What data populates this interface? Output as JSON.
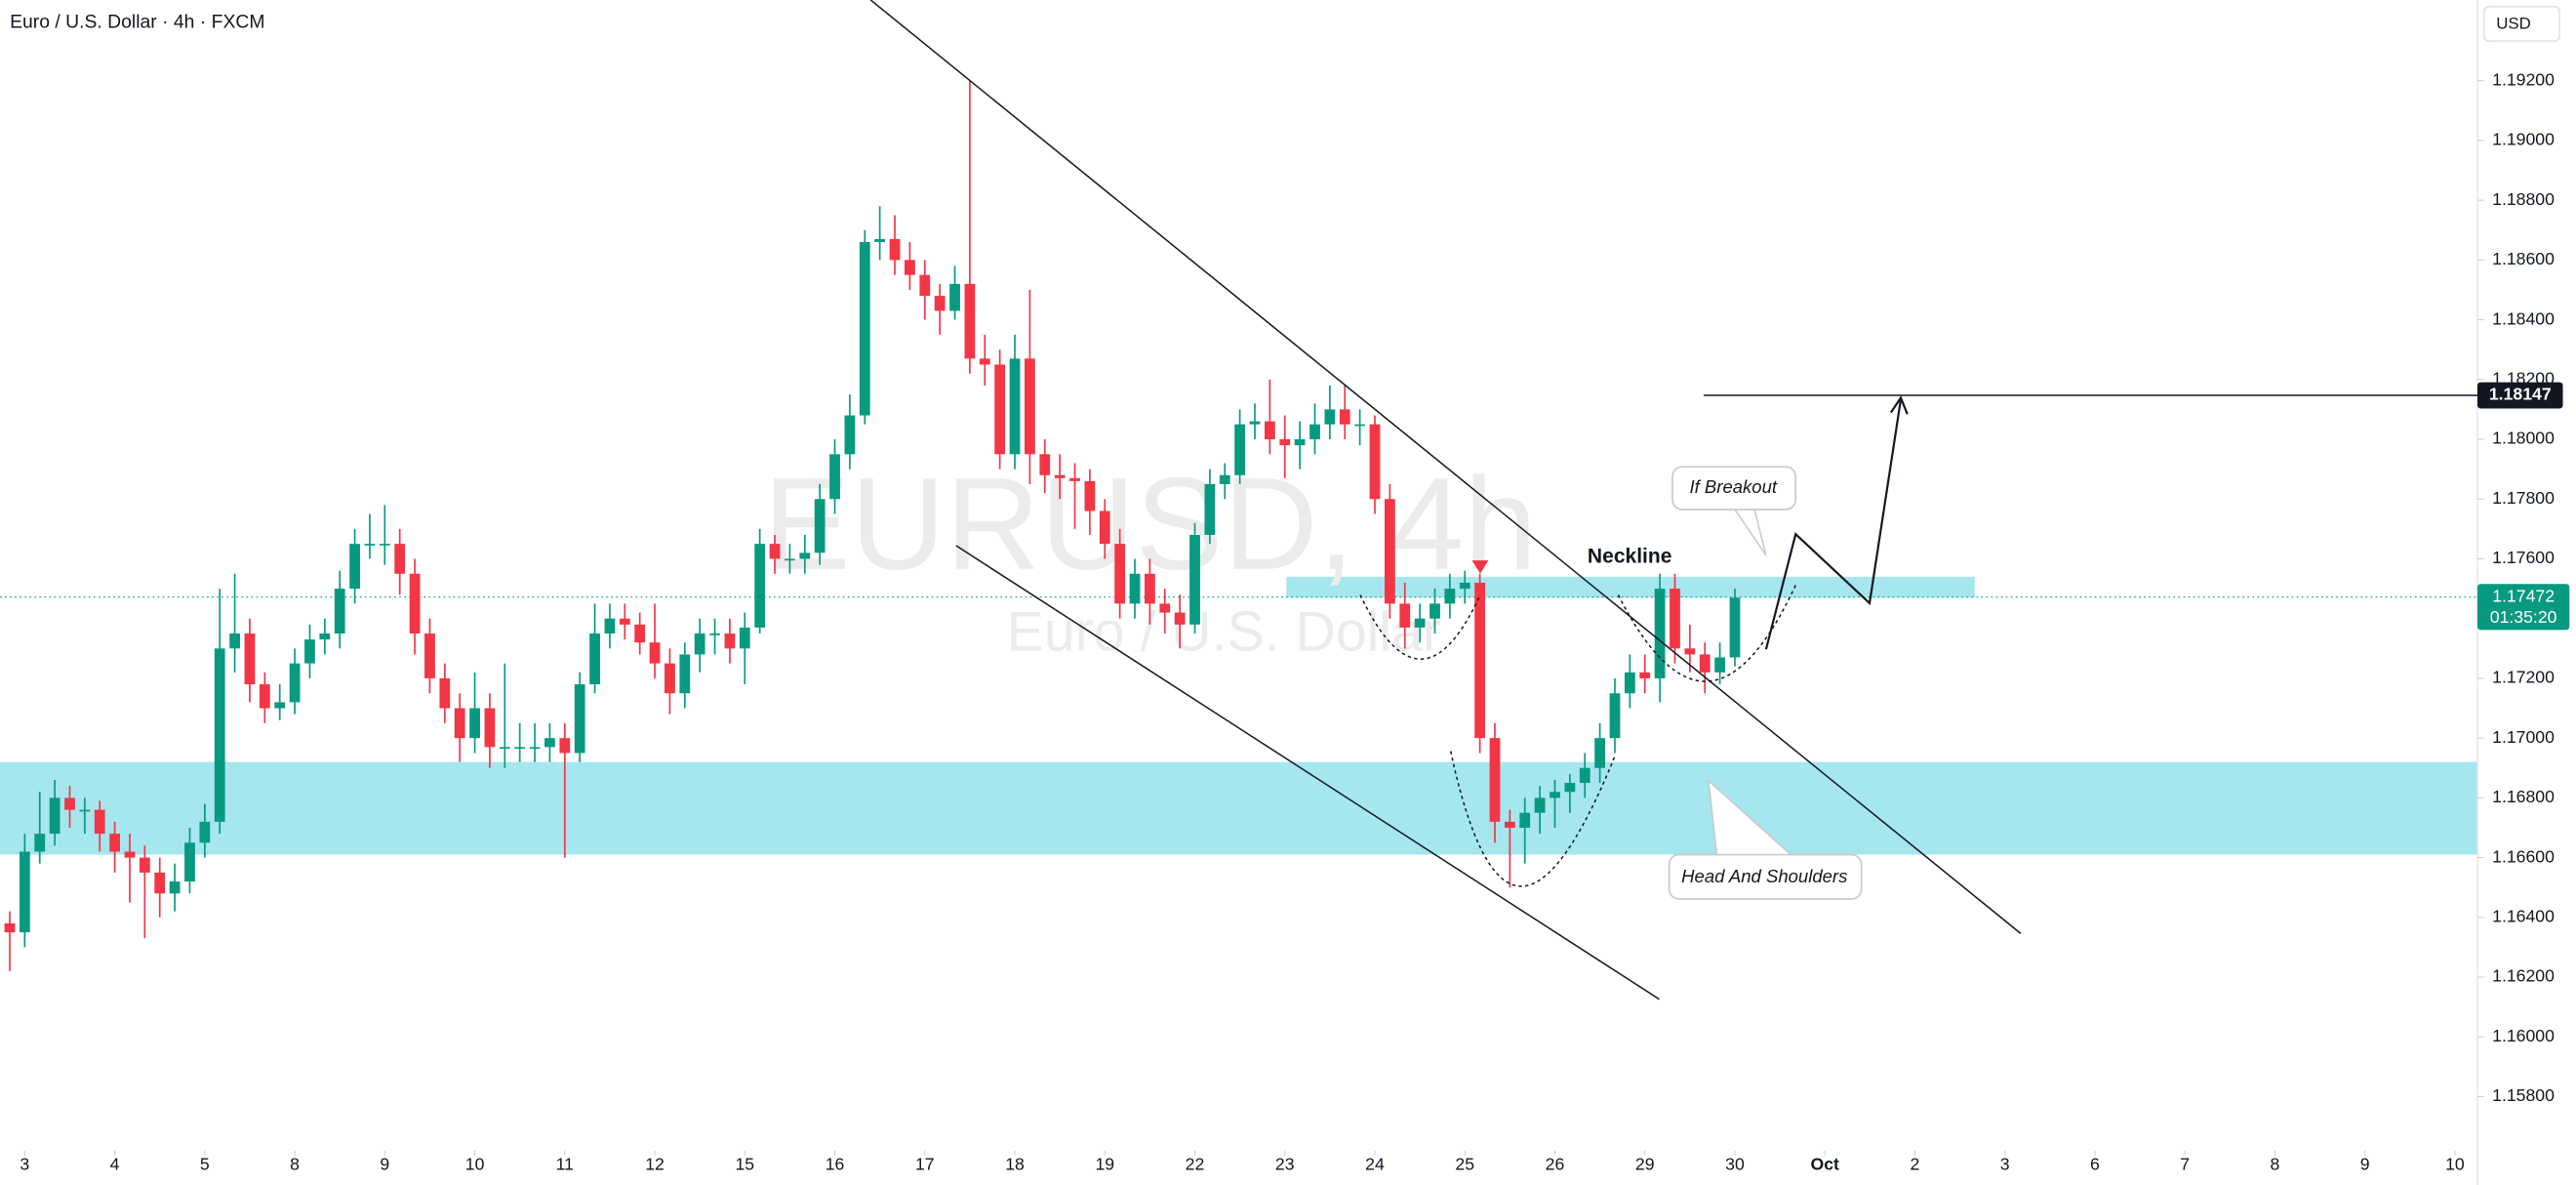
{
  "chart_data": {
    "type": "candlestick",
    "title": "Euro / U.S. Dollar · 4h · FXCM",
    "currency": "USD",
    "watermark": {
      "title": "EURUSD, 4h",
      "subtitle": "Euro / U.S. Dollar"
    },
    "up_color": "#089981",
    "down_color": "#f23645",
    "open": [
      1.1638,
      1.1635,
      1.1662,
      1.1668,
      1.168,
      1.1676,
      1.1676,
      1.1668,
      1.1662,
      1.166,
      1.1655,
      1.1648,
      1.1652,
      1.1665,
      1.1672,
      1.173,
      1.1735,
      1.1718,
      1.171,
      1.1712,
      1.1725,
      1.1733,
      1.1735,
      1.175,
      1.1765,
      1.1765,
      1.1765,
      1.1755,
      1.1735,
      1.172,
      1.171,
      1.17,
      1.171,
      1.1697,
      1.1697,
      1.1697,
      1.1697,
      1.17,
      1.1695,
      1.1718,
      1.1735,
      1.174,
      1.1738,
      1.1732,
      1.1725,
      1.1715,
      1.1728,
      1.1735,
      1.1735,
      1.173,
      1.1737,
      1.1765,
      1.176,
      1.176,
      1.1762,
      1.178,
      1.1795,
      1.1808,
      1.1866,
      1.1867,
      1.186,
      1.1855,
      1.1848,
      1.1843,
      1.1852,
      1.1827,
      1.1825,
      1.1795,
      1.1827,
      1.1795,
      1.1788,
      1.1787,
      1.1786,
      1.1776,
      1.1765,
      1.1745,
      1.1755,
      1.1745,
      1.1742,
      1.1738,
      1.1768,
      1.1785,
      1.1788,
      1.1805,
      1.1806,
      1.18,
      1.1798,
      1.18,
      1.1805,
      1.181,
      1.1805,
      1.1805,
      1.178,
      1.1745,
      1.1737,
      1.174,
      1.1745,
      1.175,
      1.1752,
      1.17,
      1.1672,
      1.167,
      1.1675,
      1.168,
      1.1682,
      1.1685,
      1.169,
      1.17,
      1.1715,
      1.1722,
      1.172,
      1.175,
      1.173,
      1.1728,
      1.1722,
      1.1727
    ],
    "high": [
      1.1642,
      1.1668,
      1.1682,
      1.1686,
      1.1684,
      1.168,
      1.1679,
      1.1672,
      1.1668,
      1.1664,
      1.166,
      1.1658,
      1.167,
      1.1678,
      1.175,
      1.1755,
      1.174,
      1.1722,
      1.1718,
      1.173,
      1.1738,
      1.174,
      1.1756,
      1.177,
      1.1775,
      1.1778,
      1.177,
      1.176,
      1.174,
      1.1725,
      1.1715,
      1.1722,
      1.1715,
      1.1725,
      1.1705,
      1.1705,
      1.1705,
      1.1705,
      1.1722,
      1.1745,
      1.1745,
      1.1745,
      1.1742,
      1.1745,
      1.173,
      1.1732,
      1.174,
      1.174,
      1.174,
      1.1742,
      1.177,
      1.1768,
      1.1765,
      1.1768,
      1.1785,
      1.18,
      1.1815,
      1.187,
      1.1878,
      1.1875,
      1.1866,
      1.186,
      1.1852,
      1.1858,
      1.192,
      1.1835,
      1.183,
      1.1835,
      1.185,
      1.18,
      1.1795,
      1.1792,
      1.179,
      1.178,
      1.177,
      1.176,
      1.176,
      1.175,
      1.1748,
      1.1772,
      1.179,
      1.1792,
      1.181,
      1.1812,
      1.182,
      1.1808,
      1.1806,
      1.1812,
      1.1818,
      1.1818,
      1.181,
      1.1808,
      1.1785,
      1.1752,
      1.1745,
      1.175,
      1.1755,
      1.1756,
      1.1755,
      1.1705,
      1.1676,
      1.168,
      1.1684,
      1.1686,
      1.1688,
      1.1695,
      1.1705,
      1.172,
      1.1728,
      1.1728,
      1.1755,
      1.1755,
      1.1738,
      1.1732,
      1.1732,
      1.175
    ],
    "low": [
      1.1622,
      1.163,
      1.1658,
      1.1664,
      1.167,
      1.1668,
      1.1662,
      1.1655,
      1.1645,
      1.1633,
      1.164,
      1.1642,
      1.1648,
      1.166,
      1.1668,
      1.1722,
      1.1712,
      1.1705,
      1.1706,
      1.1708,
      1.172,
      1.1728,
      1.173,
      1.1745,
      1.176,
      1.1758,
      1.1748,
      1.1728,
      1.1715,
      1.1705,
      1.1692,
      1.1695,
      1.169,
      1.169,
      1.1692,
      1.1692,
      1.1692,
      1.166,
      1.1692,
      1.1715,
      1.173,
      1.1733,
      1.1728,
      1.172,
      1.1708,
      1.171,
      1.1722,
      1.1728,
      1.1725,
      1.1718,
      1.1735,
      1.1755,
      1.1755,
      1.1755,
      1.1758,
      1.1775,
      1.179,
      1.1805,
      1.186,
      1.1855,
      1.185,
      1.184,
      1.1835,
      1.184,
      1.1822,
      1.1818,
      1.179,
      1.179,
      1.1785,
      1.1782,
      1.178,
      1.177,
      1.1768,
      1.176,
      1.174,
      1.174,
      1.1738,
      1.1735,
      1.173,
      1.1735,
      1.1765,
      1.178,
      1.1785,
      1.18,
      1.1795,
      1.1787,
      1.179,
      1.1795,
      1.18,
      1.18,
      1.1798,
      1.1775,
      1.174,
      1.173,
      1.1732,
      1.1735,
      1.174,
      1.1745,
      1.1695,
      1.1665,
      1.165,
      1.1658,
      1.1668,
      1.167,
      1.1675,
      1.168,
      1.1685,
      1.1695,
      1.171,
      1.1715,
      1.1712,
      1.1725,
      1.1722,
      1.1715,
      1.1718,
      1.1724
    ],
    "close": [
      1.1635,
      1.1662,
      1.1668,
      1.168,
      1.1676,
      1.1676,
      1.1668,
      1.1662,
      1.166,
      1.1655,
      1.1648,
      1.1652,
      1.1665,
      1.1672,
      1.173,
      1.1735,
      1.1718,
      1.171,
      1.1712,
      1.1725,
      1.1733,
      1.1735,
      1.175,
      1.1765,
      1.1765,
      1.1765,
      1.1755,
      1.1735,
      1.172,
      1.171,
      1.17,
      1.171,
      1.1697,
      1.1697,
      1.1697,
      1.1697,
      1.17,
      1.1695,
      1.1718,
      1.1735,
      1.174,
      1.1738,
      1.1732,
      1.1725,
      1.1715,
      1.1728,
      1.1735,
      1.1735,
      1.173,
      1.1737,
      1.1765,
      1.176,
      1.176,
      1.1762,
      1.178,
      1.1795,
      1.1808,
      1.1866,
      1.1867,
      1.186,
      1.1855,
      1.1848,
      1.1843,
      1.1852,
      1.1827,
      1.1825,
      1.1795,
      1.1827,
      1.1795,
      1.1788,
      1.1787,
      1.1786,
      1.1776,
      1.1765,
      1.1745,
      1.1755,
      1.1745,
      1.1742,
      1.1738,
      1.1768,
      1.1785,
      1.1788,
      1.1805,
      1.1806,
      1.18,
      1.1798,
      1.18,
      1.1805,
      1.181,
      1.1805,
      1.1805,
      1.178,
      1.1745,
      1.1737,
      1.174,
      1.1745,
      1.175,
      1.1752,
      1.17,
      1.1672,
      1.167,
      1.1675,
      1.168,
      1.1682,
      1.1685,
      1.169,
      1.17,
      1.1715,
      1.1722,
      1.172,
      1.175,
      1.173,
      1.1728,
      1.1722,
      1.1727,
      1.1747
    ],
    "xlim": [
      -0.65,
      164.5
    ],
    "xticks": [
      {
        "value": 1,
        "label": "3"
      },
      {
        "value": 7,
        "label": "4"
      },
      {
        "value": 13,
        "label": "5"
      },
      {
        "value": 19,
        "label": "8"
      },
      {
        "value": 25,
        "label": "9"
      },
      {
        "value": 31,
        "label": "10"
      },
      {
        "value": 37,
        "label": "11"
      },
      {
        "value": 43,
        "label": "12"
      },
      {
        "value": 49,
        "label": "15"
      },
      {
        "value": 55,
        "label": "16"
      },
      {
        "value": 61,
        "label": "17"
      },
      {
        "value": 67,
        "label": "18"
      },
      {
        "value": 73,
        "label": "19"
      },
      {
        "value": 79,
        "label": "22"
      },
      {
        "value": 85,
        "label": "23"
      },
      {
        "value": 91,
        "label": "24"
      },
      {
        "value": 97,
        "label": "25"
      },
      {
        "value": 103,
        "label": "26"
      },
      {
        "value": 109,
        "label": "29"
      },
      {
        "value": 115,
        "label": "30"
      },
      {
        "value": 121,
        "label": "Oct"
      },
      {
        "value": 127,
        "label": "2"
      },
      {
        "value": 133,
        "label": "3"
      },
      {
        "value": 139,
        "label": "6"
      },
      {
        "value": 145,
        "label": "7"
      },
      {
        "value": 151,
        "label": "8"
      },
      {
        "value": 157,
        "label": "9"
      },
      {
        "value": 163,
        "label": "10"
      }
    ],
    "ylim": [
      1.1562,
      1.1947
    ],
    "yticks": [
      {
        "value": 1.158,
        "label": "1.15800"
      },
      {
        "value": 1.16,
        "label": "1.16000"
      },
      {
        "value": 1.162,
        "label": "1.16200"
      },
      {
        "value": 1.164,
        "label": "1.16400"
      },
      {
        "value": 1.166,
        "label": "1.16600"
      },
      {
        "value": 1.168,
        "label": "1.16800"
      },
      {
        "value": 1.17,
        "label": "1.17000"
      },
      {
        "value": 1.172,
        "label": "1.17200"
      },
      {
        "value": 1.174,
        "label": "1.17400"
      },
      {
        "value": 1.176,
        "label": "1.17600"
      },
      {
        "value": 1.178,
        "label": "1.17800"
      },
      {
        "value": 1.18,
        "label": "1.18000"
      },
      {
        "value": 1.182,
        "label": "1.18200"
      },
      {
        "value": 1.184,
        "label": "1.18400"
      },
      {
        "value": 1.186,
        "label": "1.18600"
      },
      {
        "value": 1.188,
        "label": "1.18800"
      },
      {
        "value": 1.19,
        "label": "1.19000"
      },
      {
        "value": 1.192,
        "label": "1.19200"
      }
    ],
    "zones": [
      {
        "low": 1.1661,
        "high": 1.1692
      },
      {
        "low": 1.1747,
        "high": 1.1754
      }
    ],
    "level": 1.18147,
    "last_price": 1.17472,
    "countdown": "01:35:20",
    "annotations": [
      "If Breakout",
      "Neckline",
      "Head And Shoulders"
    ]
  }
}
